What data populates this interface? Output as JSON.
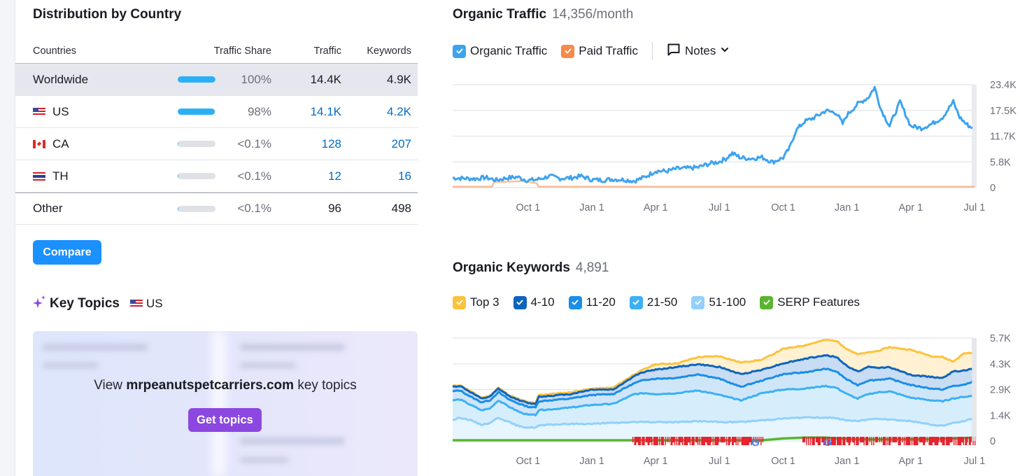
{
  "distribution": {
    "title": "Distribution by Country",
    "columns": [
      "Countries",
      "Traffic Share",
      "Traffic",
      "Keywords"
    ],
    "rows": [
      {
        "country": "Worldwide",
        "flag": "none",
        "share": "100%",
        "share_value": 100,
        "traffic": "14.4K",
        "keywords": "4.9K",
        "linked": false,
        "selected": true
      },
      {
        "country": "US",
        "flag": "us-flag",
        "share": "98%",
        "share_value": 98,
        "traffic": "14.1K",
        "keywords": "4.2K",
        "linked": true,
        "selected": false
      },
      {
        "country": "CA",
        "flag": "ca-flag",
        "share": "<0.1%",
        "share_value": 0.1,
        "traffic": "128",
        "keywords": "207",
        "linked": true,
        "selected": false
      },
      {
        "country": "TH",
        "flag": "th-flag",
        "share": "<0.1%",
        "share_value": 0.1,
        "traffic": "12",
        "keywords": "16",
        "linked": true,
        "selected": false
      },
      {
        "country": "Other",
        "flag": "none",
        "share": "<0.1%",
        "share_value": 0.1,
        "traffic": "96",
        "keywords": "498",
        "linked": false,
        "selected": false
      }
    ],
    "compare_label": "Compare"
  },
  "key_topics": {
    "title": "Key Topics",
    "country": "US",
    "text_prefix": "View",
    "domain": "mrpeanutspetcarriers.com",
    "text_suffix": "key topics",
    "button_label": "Get topics"
  },
  "colors": {
    "accent_blue": "#1a91ff",
    "purple": "#8c47e0",
    "organic": "#3ea3ef",
    "paid": "#f7894a",
    "top3": "#fdc23c",
    "pos_4_10": "#0e64bd",
    "pos_11_20": "#1a8ee8",
    "pos_21_50": "#3cb0f5",
    "pos_51_100": "#92d0fb",
    "serp": "#59b52f"
  },
  "chart_data": [
    {
      "type": "line",
      "title": "Organic Traffic",
      "subtitle": "14,356/month",
      "legend": [
        {
          "label": "Organic Traffic",
          "color": "#3ea3ef",
          "checked": true
        },
        {
          "label": "Paid Traffic",
          "color": "#f7894a",
          "checked": true
        }
      ],
      "notes_label": "Notes",
      "x_ticks": [
        "Oct 1",
        "Jan 1",
        "Apr 1",
        "Jul 1",
        "Oct 1",
        "Jan 1",
        "Apr 1",
        "Jul 1"
      ],
      "y_ticks": [
        "0",
        "5.8K",
        "11.7K",
        "17.5K",
        "23.4K"
      ],
      "ylim": [
        0,
        23400
      ],
      "x_unit": "months since Jul 1 (year 1)",
      "xlim": [
        -0.55,
        24
      ],
      "series": [
        {
          "name": "Organic Traffic",
          "x": [
            -0.55,
            0,
            0.5,
            1,
            1.5,
            2,
            2.5,
            3,
            3.5,
            4,
            4.5,
            5,
            5.5,
            6,
            6.5,
            7,
            7.5,
            8,
            8.5,
            9,
            9.5,
            10,
            10.5,
            11,
            11.5,
            12,
            12.3,
            12.6,
            13,
            13.5,
            14,
            14.5,
            15,
            15.3,
            15.6,
            16,
            16.5,
            17,
            17.5,
            17.8,
            18,
            18.5,
            19,
            19.3,
            19.6,
            20,
            20.5,
            21,
            21.5,
            22,
            22.5,
            23,
            23.3,
            23.6,
            23.9
          ],
          "values": [
            2200,
            2100,
            2000,
            2300,
            1700,
            2200,
            2400,
            1600,
            1900,
            2600,
            2100,
            2200,
            2600,
            1800,
            1700,
            1900,
            1800,
            1500,
            2400,
            3800,
            3700,
            4300,
            4400,
            4600,
            5400,
            5900,
            6600,
            7800,
            6800,
            6600,
            6900,
            5800,
            6800,
            9000,
            13000,
            15000,
            16000,
            17500,
            17000,
            14500,
            16500,
            19000,
            20500,
            22800,
            17800,
            14000,
            19500,
            14000,
            13500,
            14500,
            16000,
            19500,
            16000,
            14500,
            13500
          ]
        },
        {
          "name": "Paid Traffic",
          "x": [
            -0.55,
            1.3,
            1.4,
            2.0,
            2.7,
            3.4,
            3.5,
            24
          ],
          "values": [
            200,
            200,
            1300,
            1300,
            1500,
            1000,
            200,
            200
          ]
        }
      ]
    },
    {
      "type": "area",
      "title": "Organic Keywords",
      "subtitle": "4,891",
      "legend": [
        {
          "label": "Top 3",
          "color": "#fdc23c",
          "checked": true
        },
        {
          "label": "4-10",
          "color": "#0e64bd",
          "checked": true
        },
        {
          "label": "11-20",
          "color": "#1a8ee8",
          "checked": true
        },
        {
          "label": "21-50",
          "color": "#3cb0f5",
          "checked": true
        },
        {
          "label": "51-100",
          "color": "#92d0fb",
          "checked": true
        },
        {
          "label": "SERP Features",
          "color": "#59b52f",
          "checked": true
        }
      ],
      "x_ticks": [
        "Oct 1",
        "Jan 1",
        "Apr 1",
        "Jul 1",
        "Oct 1",
        "Jan 1",
        "Apr 1",
        "Jul 1"
      ],
      "y_ticks": [
        "0",
        "1.4K",
        "2.9K",
        "4.3K",
        "5.7K"
      ],
      "ylim": [
        0,
        5700
      ],
      "x_unit": "months since Jul 1 (year 1)",
      "xlim": [
        -0.55,
        24
      ],
      "x": [
        -0.55,
        -0.2,
        0.3,
        0.8,
        1.2,
        1.6,
        2.1,
        2.6,
        3.0,
        3.35,
        3.5,
        4,
        5,
        6,
        7,
        8,
        8.5,
        9,
        10,
        11,
        12,
        13,
        14,
        15,
        16,
        17,
        17.5,
        18,
        18.5,
        19,
        19.5,
        20,
        21,
        22,
        22.5,
        23,
        23.5,
        23.9
      ],
      "series": [
        {
          "name": "Top 3",
          "values": [
            3050,
            3100,
            2750,
            2400,
            2500,
            2950,
            2550,
            2300,
            2150,
            2100,
            2550,
            2600,
            2700,
            2900,
            2950,
            3700,
            4000,
            4250,
            4300,
            4650,
            4700,
            4350,
            4500,
            5100,
            5300,
            5600,
            5550,
            5100,
            4800,
            4900,
            5000,
            5200,
            5050,
            4700,
            4650,
            4400,
            4850,
            4900
          ]
        },
        {
          "name": "4-10",
          "values": [
            3000,
            3050,
            2700,
            2350,
            2450,
            2900,
            2500,
            2250,
            2100,
            2050,
            2450,
            2500,
            2600,
            2850,
            2850,
            3600,
            3850,
            3950,
            4100,
            4250,
            4100,
            3700,
            3950,
            4300,
            4550,
            4750,
            4650,
            4150,
            3850,
            4100,
            4050,
            4100,
            3650,
            3550,
            3500,
            3850,
            3900,
            4000
          ]
        },
        {
          "name": "11-20",
          "values": [
            2750,
            2800,
            2450,
            2150,
            2250,
            2700,
            2300,
            2050,
            1900,
            1850,
            2200,
            2250,
            2350,
            2550,
            2600,
            3200,
            3400,
            3450,
            3500,
            3700,
            3450,
            3000,
            3350,
            3700,
            3800,
            4000,
            3850,
            3400,
            3100,
            3350,
            3400,
            3450,
            3100,
            2900,
            2850,
            3050,
            3100,
            3300
          ]
        },
        {
          "name": "21-50",
          "values": [
            2250,
            2300,
            2000,
            1700,
            1800,
            2250,
            1900,
            1600,
            1450,
            1450,
            1700,
            1750,
            1850,
            2000,
            2050,
            2600,
            2650,
            2600,
            2650,
            2800,
            2550,
            2250,
            2650,
            2850,
            2900,
            3050,
            2950,
            2600,
            2350,
            2600,
            2700,
            2750,
            2400,
            2250,
            2200,
            2350,
            2450,
            2500
          ]
        },
        {
          "name": "51-100",
          "values": [
            1150,
            1300,
            1150,
            900,
            1000,
            1300,
            1050,
            800,
            750,
            750,
            850,
            900,
            950,
            950,
            1000,
            1050,
            1050,
            1050,
            1050,
            1100,
            1050,
            1050,
            1150,
            1250,
            1300,
            1300,
            1250,
            1150,
            1100,
            1200,
            1250,
            1200,
            1100,
            900,
            850,
            1000,
            1100,
            1250
          ]
        },
        {
          "name": "SERP Features",
          "values": [
            0,
            0,
            0,
            0,
            0,
            0,
            0,
            0,
            0,
            0,
            0,
            0,
            0,
            0,
            0,
            0,
            0,
            0,
            0,
            0,
            0,
            0,
            0,
            100,
            150,
            150,
            100,
            80,
            50,
            50,
            50,
            50,
            50,
            60,
            80,
            100,
            120,
            150
          ]
        }
      ],
      "google_update_markers": [
        "G",
        "G",
        "G"
      ]
    }
  ]
}
